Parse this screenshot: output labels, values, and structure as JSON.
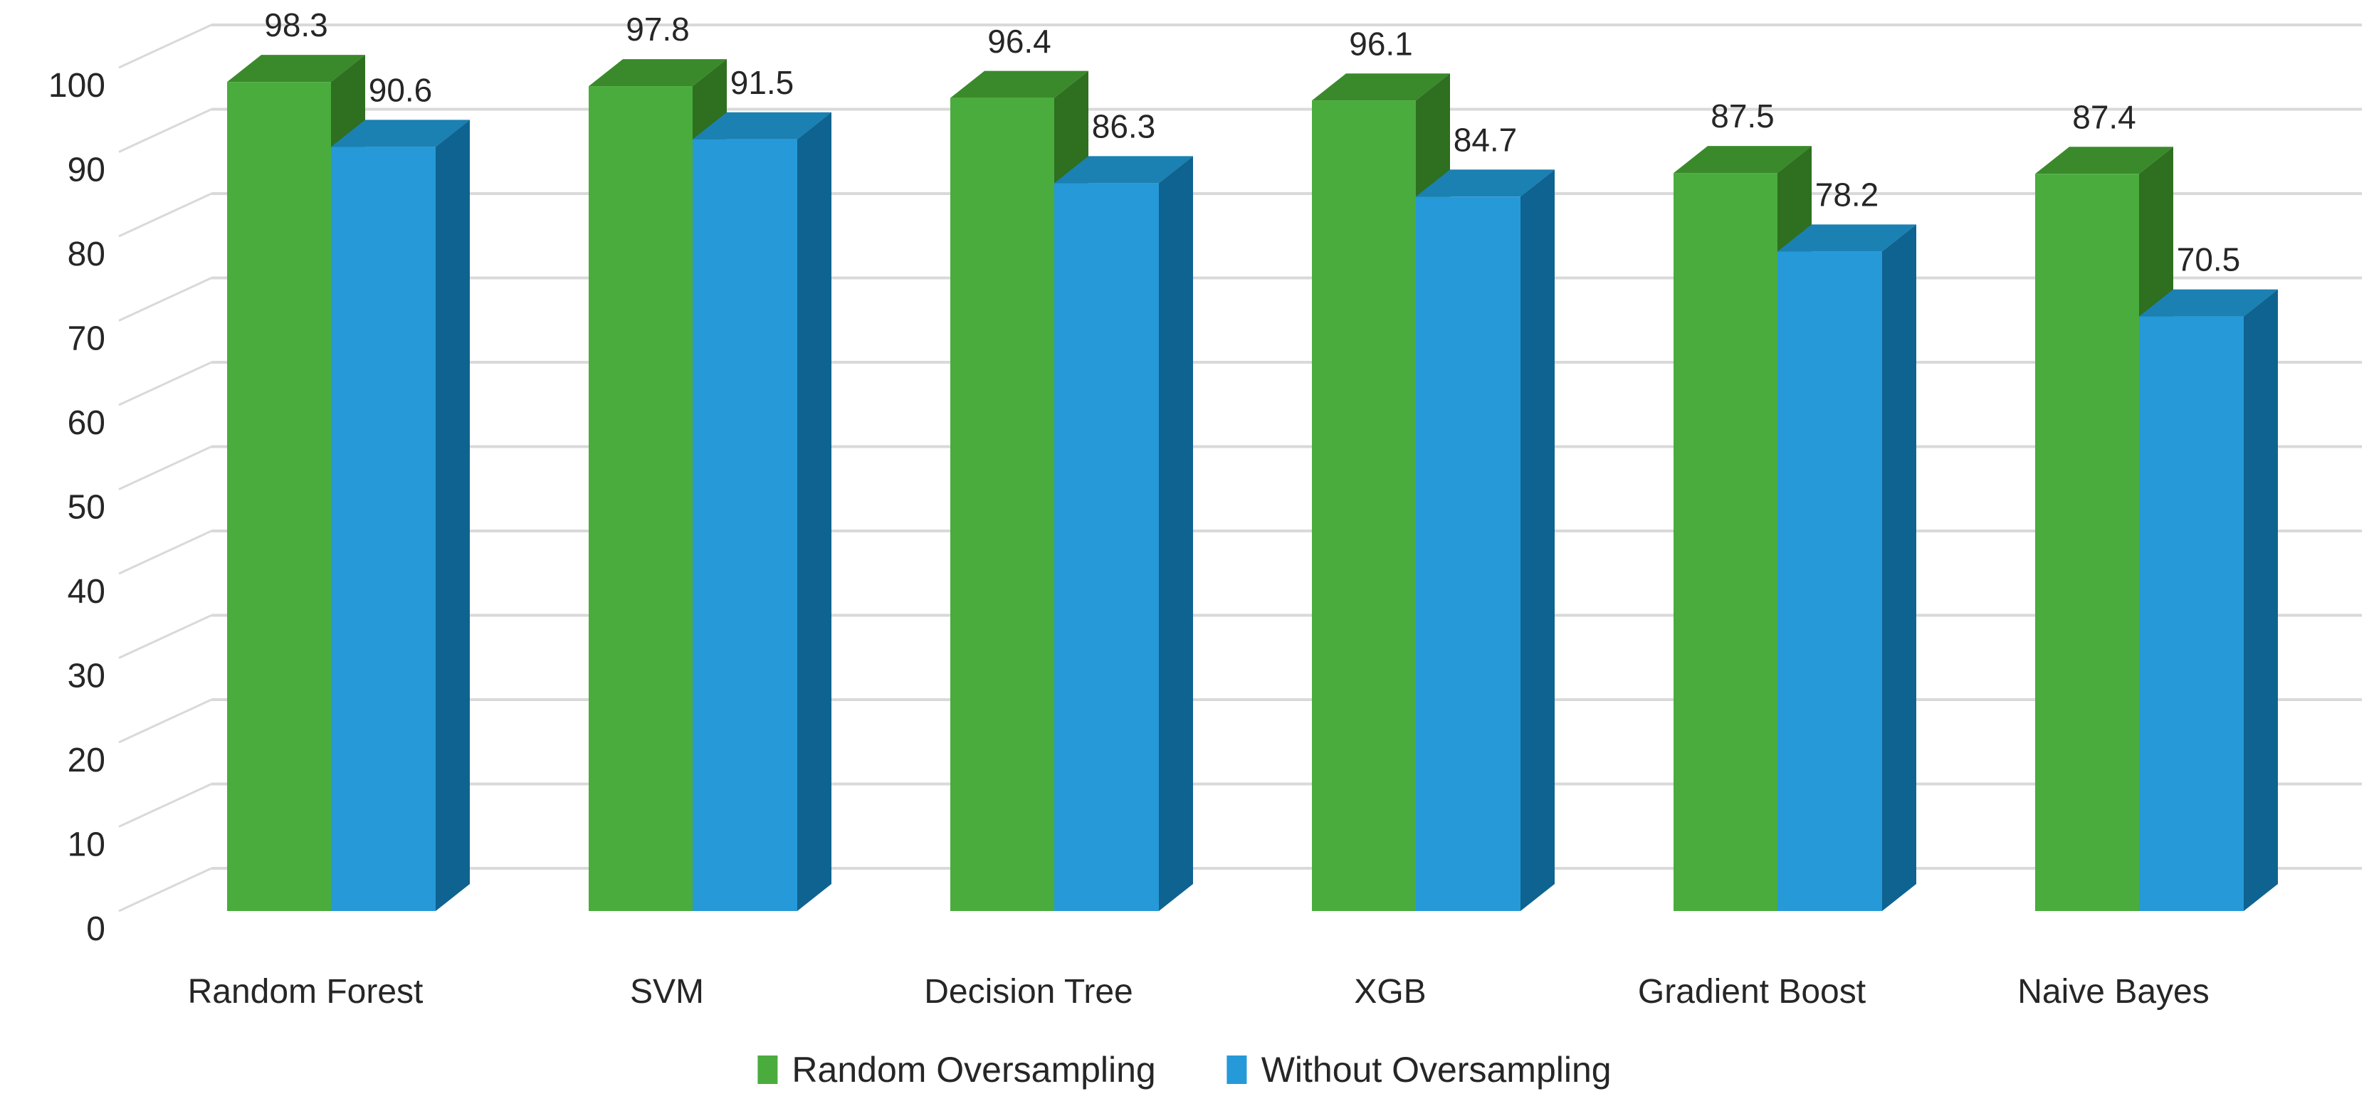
{
  "chart_data": {
    "type": "bar",
    "projection": "3d-oblique",
    "title": "",
    "categories": [
      "Random Forest",
      "SVM",
      "Decision Tree",
      "XGB",
      "Gradient Boost",
      "Naive Bayes"
    ],
    "series": [
      {
        "name": "Random Oversampling",
        "color": "#4AAC3D",
        "color_top": "#3A8A2B",
        "color_side": "#2E6F20",
        "values": [
          98.3,
          97.8,
          96.4,
          96.1,
          87.5,
          87.4
        ]
      },
      {
        "name": "Without Oversampling",
        "color": "#2699D8",
        "color_top": "#1B80B2",
        "color_side": "#0F6390",
        "values": [
          90.6,
          91.5,
          86.3,
          84.7,
          78.2,
          70.5
        ]
      }
    ],
    "data_labels": [
      [
        "98.3",
        "97.8",
        "96.4",
        "96.1",
        "87.5",
        "87.4"
      ],
      [
        "90.6",
        "91.5",
        "86.3",
        "84.7",
        "78.2",
        "70.5"
      ]
    ],
    "y_axis": {
      "min": 0,
      "max": 100,
      "step": 10,
      "tick_labels": [
        "0",
        "10",
        "20",
        "30",
        "40",
        "50",
        "60",
        "70",
        "80",
        "90",
        "100"
      ]
    },
    "xlabel": "",
    "ylabel": "",
    "grid": true,
    "gridline_color": "#D9D9D9",
    "text_color": "#262626",
    "background": "#FFFFFF",
    "legend_position": "bottom"
  }
}
